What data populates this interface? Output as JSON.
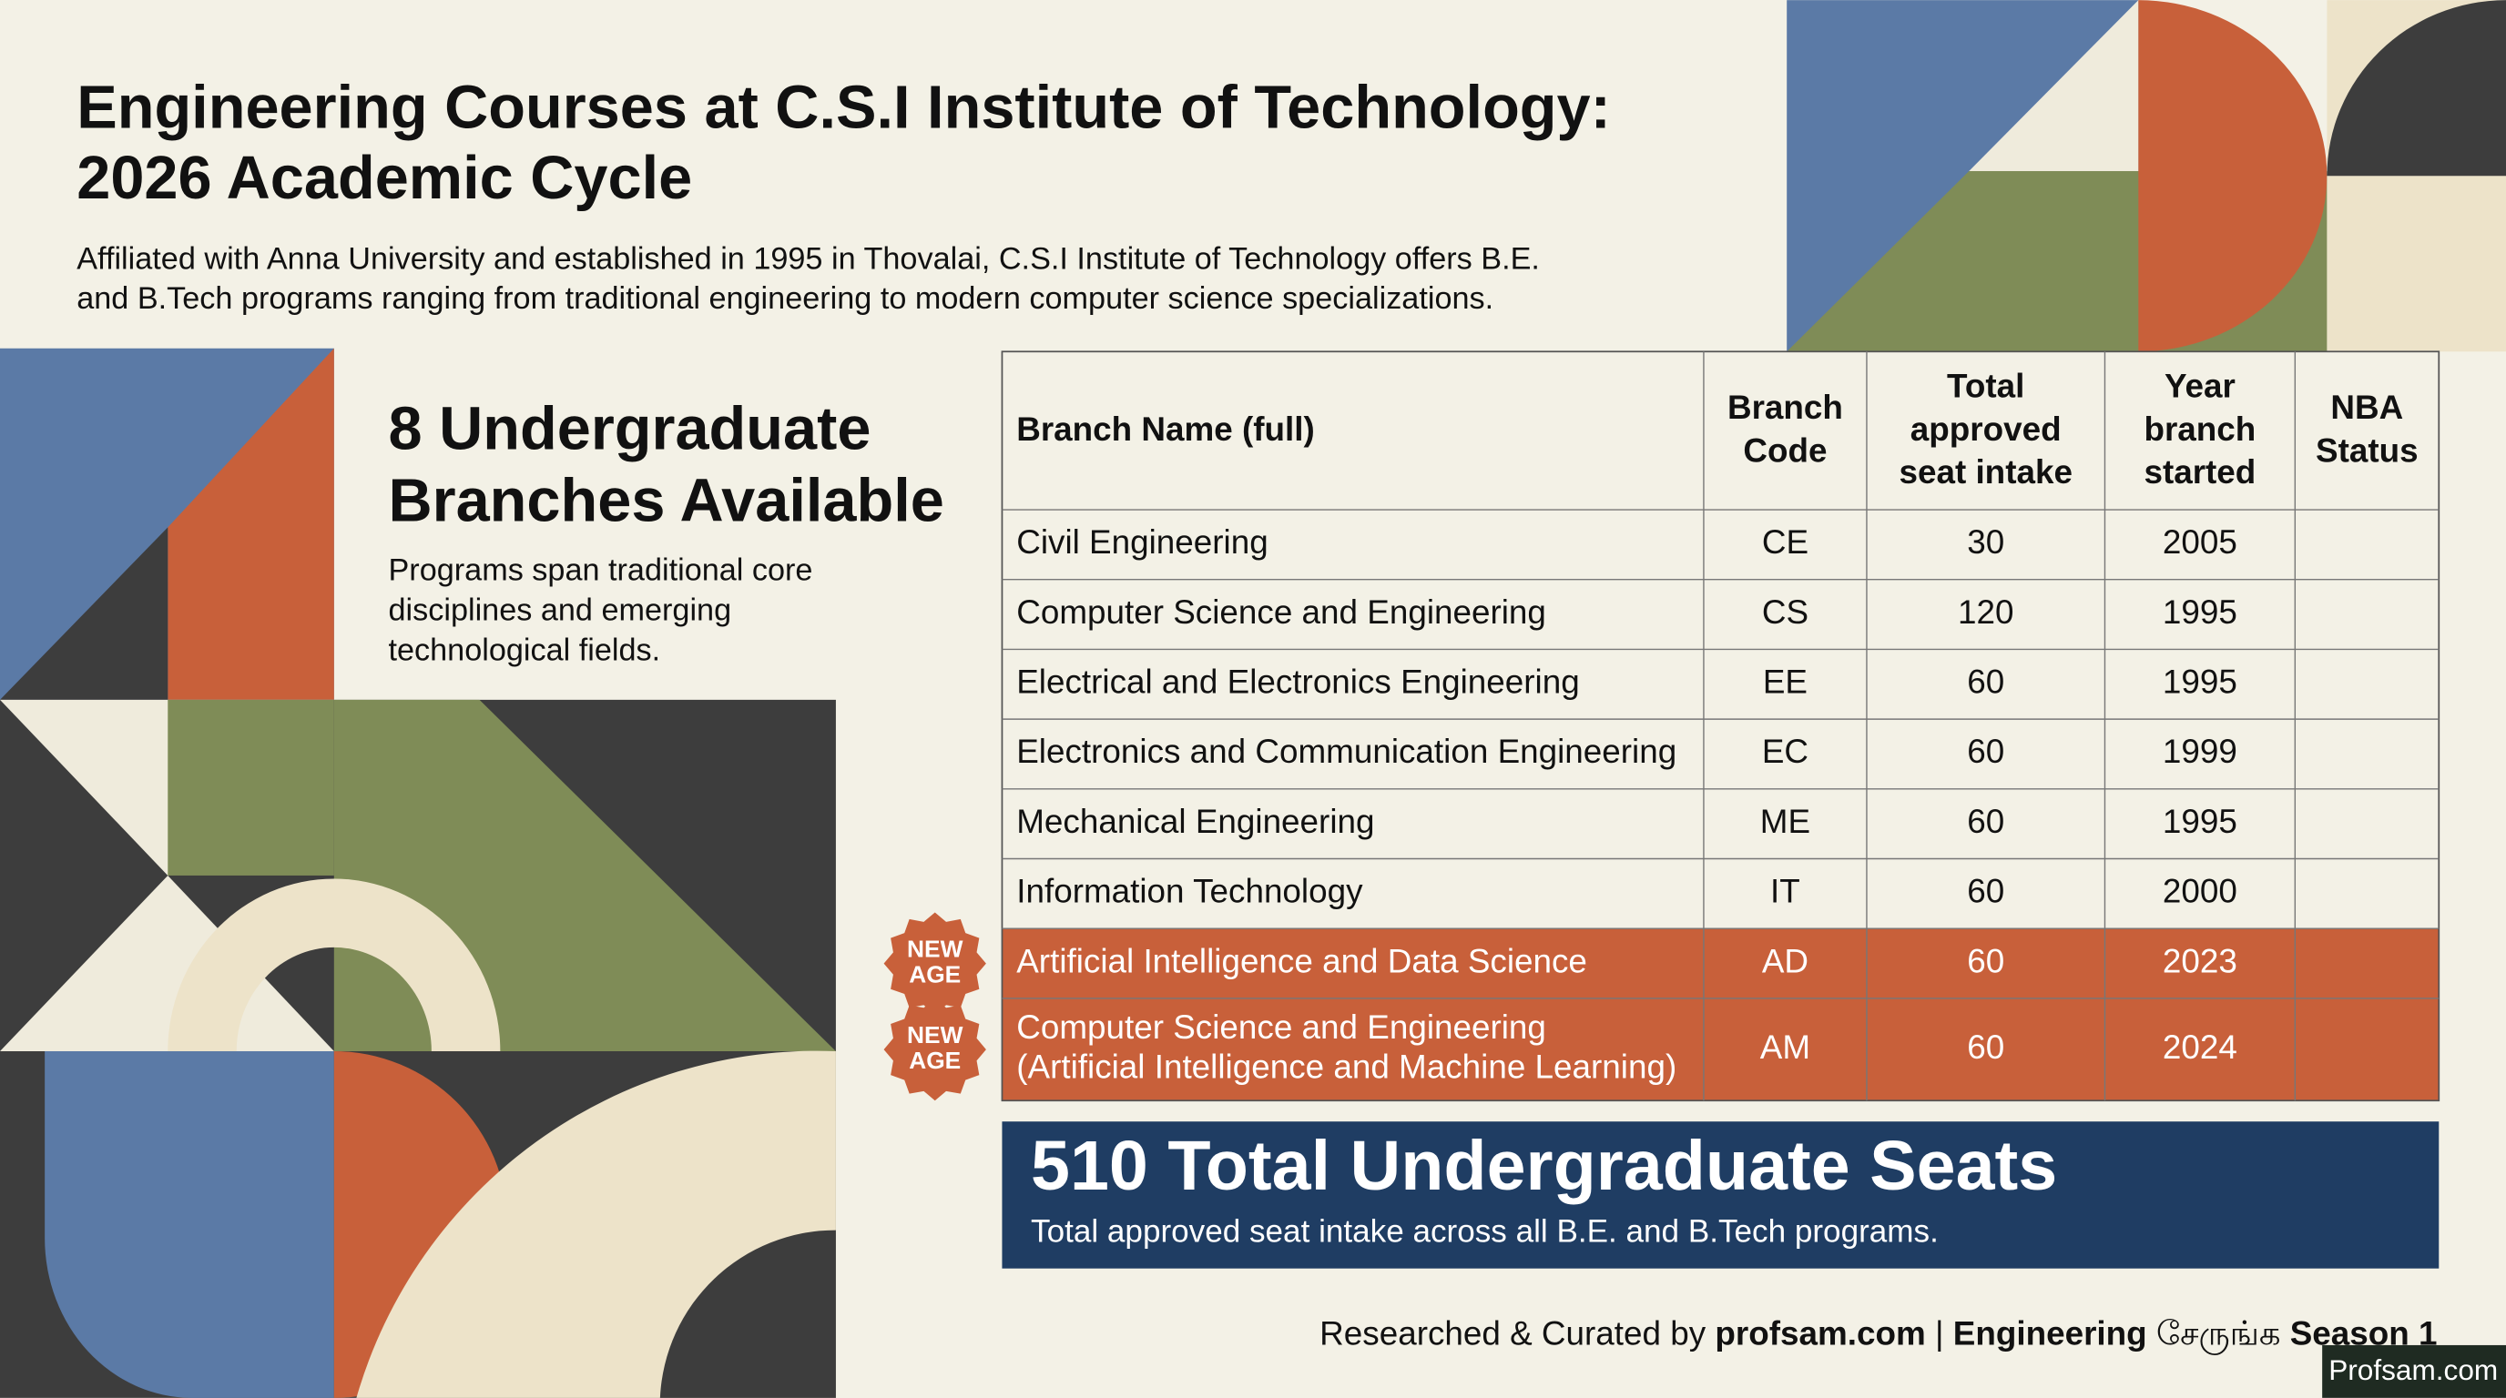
{
  "header": {
    "title": [
      "Engineering Courses at C.S.I Institute of Technology:",
      "2026 Academic Cycle"
    ],
    "subtitle": [
      "Affiliated with Anna University and established in 1995 in Thovalai, C.S.I Institute of Technology offers B.E.",
      "and B.Tech programs ranging from traditional engineering to modern computer science specializations."
    ]
  },
  "sidebar": {
    "heading": [
      "8 Undergraduate",
      "Branches Available"
    ],
    "text": [
      "Programs span traditional core",
      "disciplines and emerging",
      "technological fields."
    ]
  },
  "table": {
    "headers": [
      [
        "Branch Name (full)"
      ],
      [
        "Branch",
        "Code"
      ],
      [
        "Total",
        "approved",
        "seat intake"
      ],
      [
        "Year",
        "branch",
        "started"
      ],
      [
        "NBA",
        "Status"
      ]
    ],
    "rows": [
      {
        "name": [
          "Civil Engineering"
        ],
        "code": "CE",
        "seats": 30,
        "year": 2005
      },
      {
        "name": [
          "Computer Science and Engineering"
        ],
        "code": "CS",
        "seats": 120,
        "year": 1995
      },
      {
        "name": [
          "Electrical and Electronics Engineering"
        ],
        "code": "EE",
        "seats": 60,
        "year": 1995
      },
      {
        "name": [
          "Electronics and Communication Engineering"
        ],
        "code": "EC",
        "seats": 60,
        "year": 1999
      },
      {
        "name": [
          "Mechanical Engineering"
        ],
        "code": "ME",
        "seats": 60,
        "year": 1995
      },
      {
        "name": [
          "Information Technology"
        ],
        "code": "IT",
        "seats": 60,
        "year": 2000
      },
      {
        "name": [
          "Artificial Intelligence and Data Science"
        ],
        "code": "AD",
        "seats": 60,
        "year": 2023,
        "badge": [
          "NEW",
          "AGE"
        ]
      },
      {
        "name": [
          "Computer Science and Engineering",
          "(Artificial Intelligence and Machine Learning)"
        ],
        "code": "AM",
        "seats": 60,
        "year": 2024,
        "badge": [
          "NEW",
          "AGE"
        ]
      }
    ]
  },
  "summary": {
    "title": "510 Total Undergraduate Seats",
    "text": "Total approved seat intake across all B.E. and B.Tech programs."
  },
  "footer": {
    "segments": [
      {
        "text": "Researched & Curated by ",
        "bold": false
      },
      {
        "text": "profsam.com",
        "bold": true
      },
      {
        "text": " | ",
        "bold": false
      },
      {
        "text": "Engineering",
        "bold": true
      },
      {
        "text": " சேருங்க ",
        "bold": false
      },
      {
        "text": "Season 1",
        "bold": true
      }
    ],
    "watermark": "Profsam.com"
  }
}
